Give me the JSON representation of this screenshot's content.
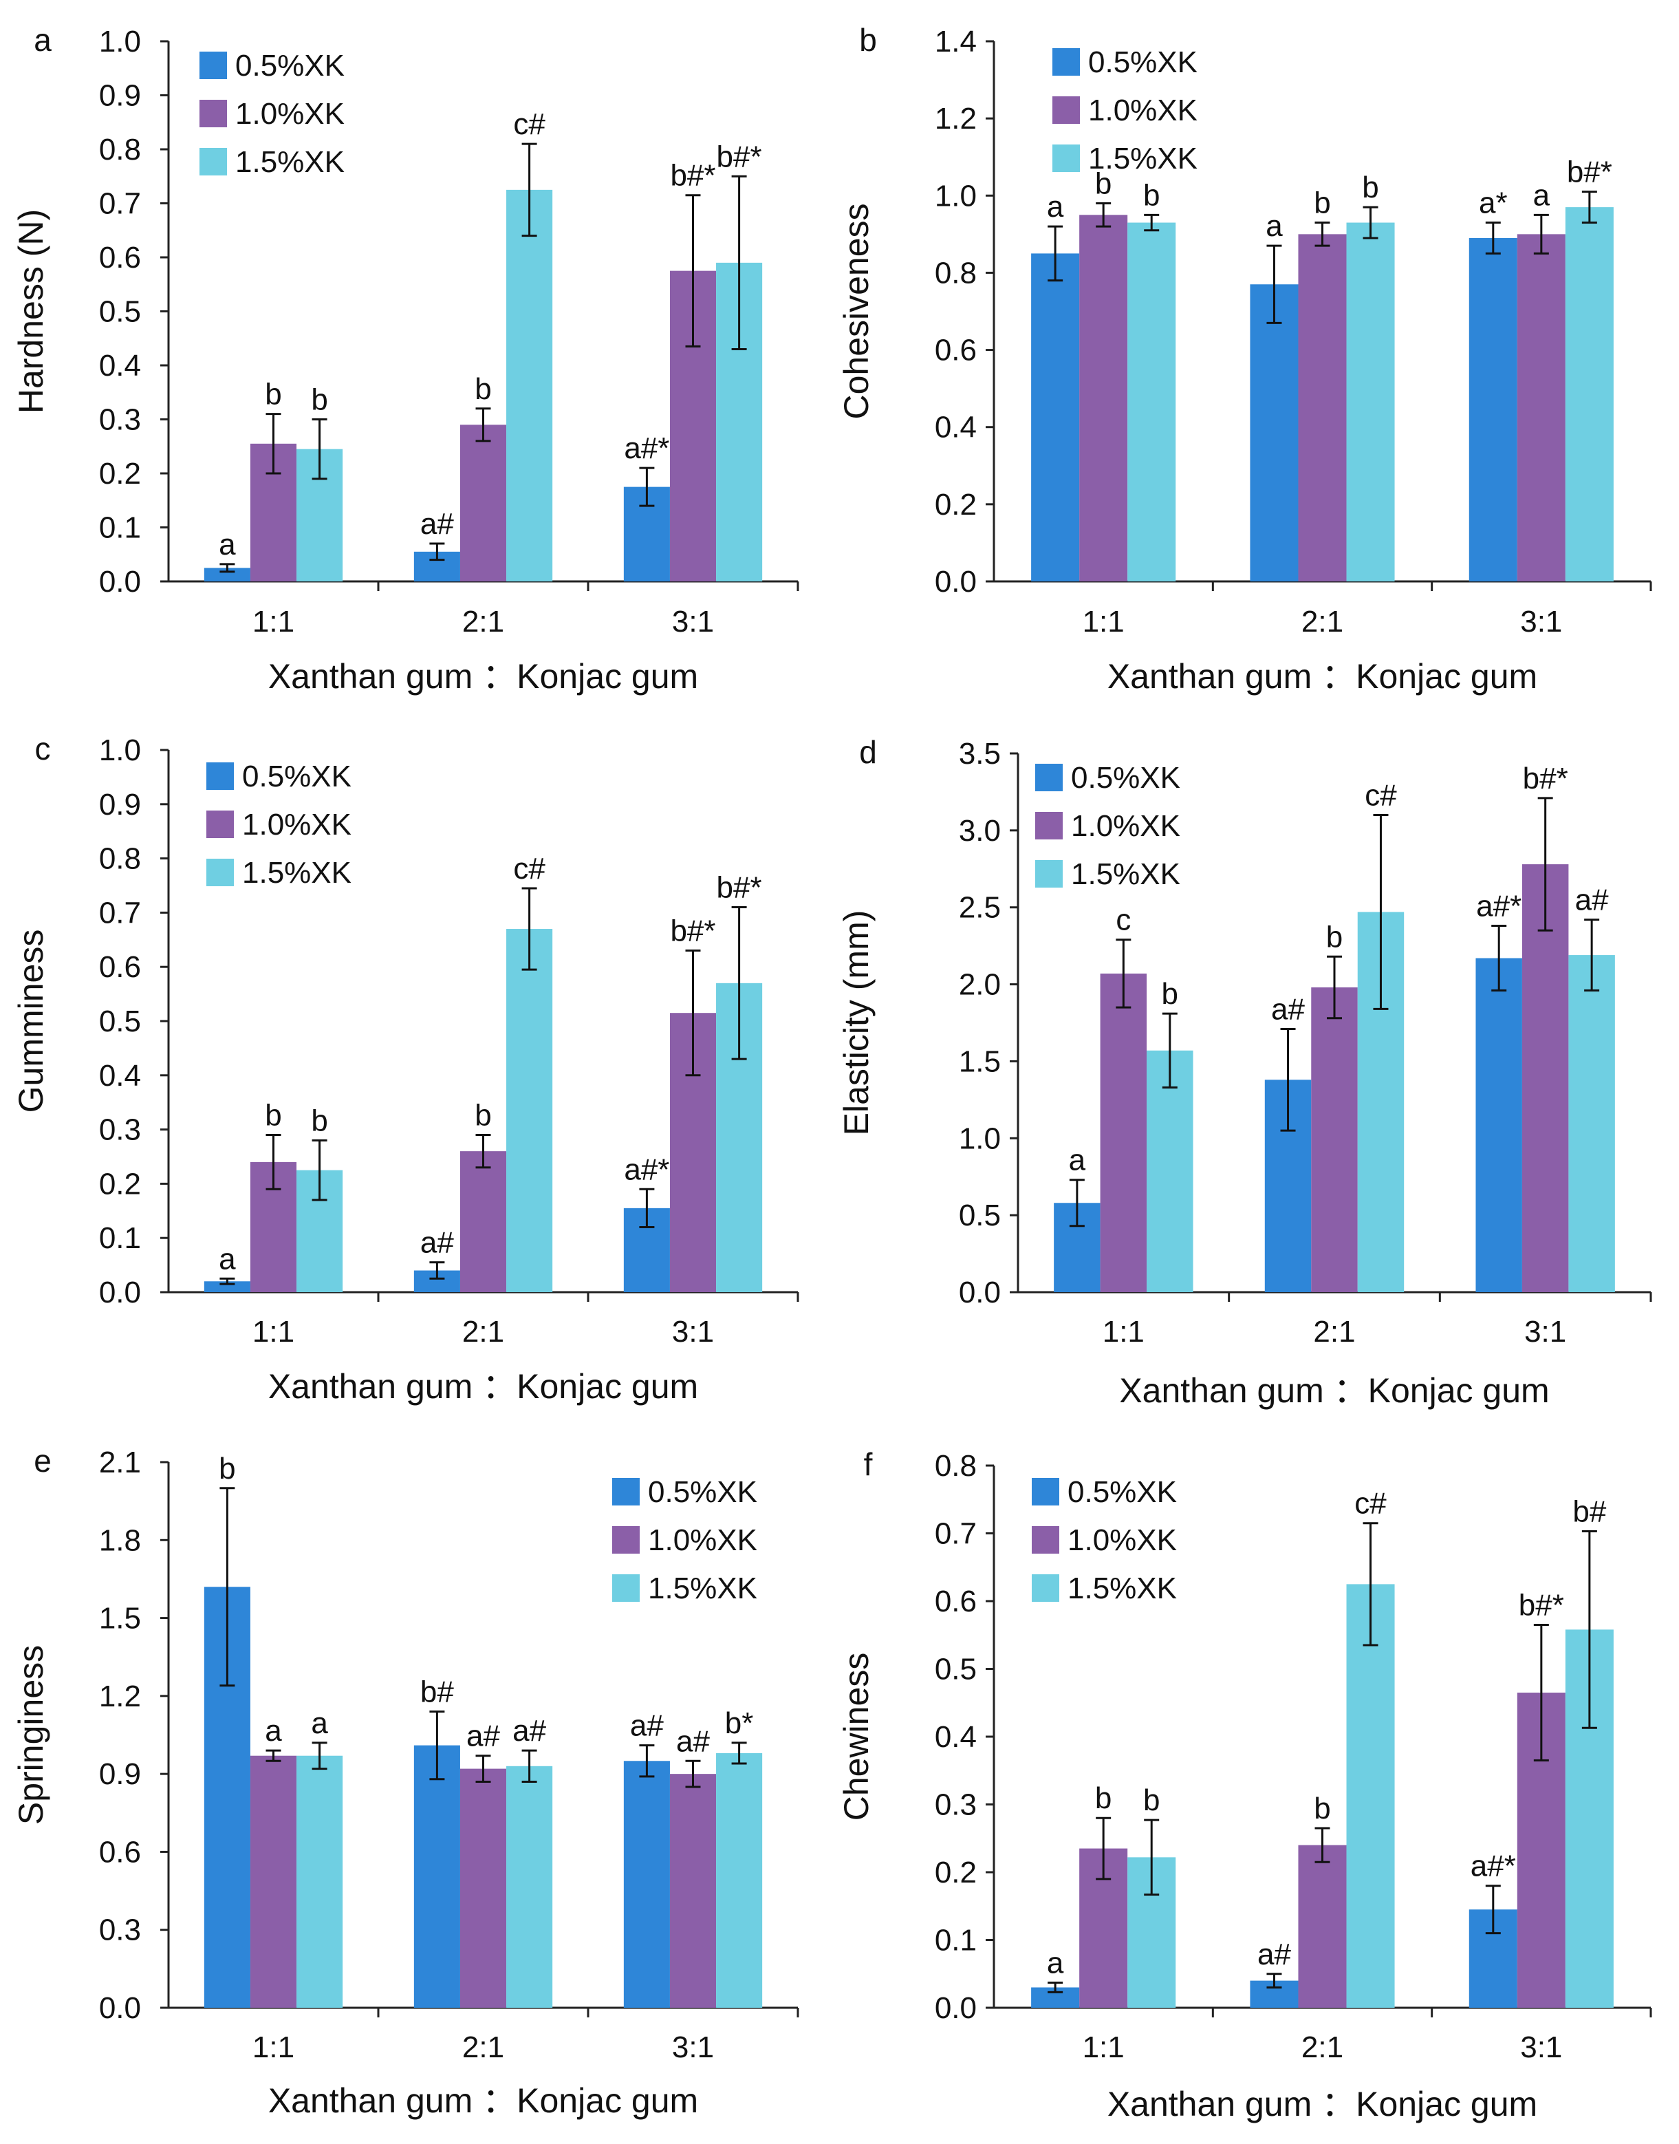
{
  "colors": {
    "s05": "#2e86d8",
    "s10": "#8b5fa8",
    "s15": "#6fcfe2",
    "axis": "#222222",
    "error": "#111111"
  },
  "chart_data": [
    {
      "type": "bar",
      "panel": "a",
      "categories": [
        "1:1",
        "2:1",
        "3:1"
      ],
      "xlabel": "Xanthan gum ：Konjac gum",
      "ylabel": "Hardness (N)",
      "ylim": [
        0,
        1.0
      ],
      "ticks": [
        "0.0",
        "0.1",
        "0.2",
        "0.3",
        "0.4",
        "0.5",
        "0.6",
        "0.7",
        "0.8",
        "0.9",
        "1.0"
      ],
      "legend_position": "top-left",
      "series": [
        {
          "name": "0.5%XK",
          "values": [
            0.025,
            0.055,
            0.175
          ],
          "errors": [
            0.007,
            0.015,
            0.035
          ],
          "labels": [
            "a",
            "a#",
            "a#*"
          ]
        },
        {
          "name": "1.0%XK",
          "values": [
            0.255,
            0.29,
            0.575
          ],
          "errors": [
            0.055,
            0.03,
            0.14
          ],
          "labels": [
            "b",
            "b",
            "b#*"
          ]
        },
        {
          "name": "1.5%XK",
          "values": [
            0.245,
            0.725,
            0.59
          ],
          "errors": [
            0.055,
            0.085,
            0.16
          ],
          "labels": [
            "b",
            "c#",
            "b#*"
          ]
        }
      ]
    },
    {
      "type": "bar",
      "panel": "b",
      "categories": [
        "1:1",
        "2:1",
        "3:1"
      ],
      "xlabel": "Xanthan gum ：Konjac gum",
      "ylabel": "Cohesiveness",
      "ylim": [
        0,
        1.4
      ],
      "ticks": [
        "0.0",
        "0.2",
        "0.4",
        "0.6",
        "0.8",
        "1.0",
        "1.2",
        "1.4"
      ],
      "legend_position": "top-left",
      "series": [
        {
          "name": "0.5%XK",
          "values": [
            0.85,
            0.77,
            0.89
          ],
          "errors": [
            0.07,
            0.1,
            0.04
          ],
          "labels": [
            "a",
            "a",
            "a*"
          ]
        },
        {
          "name": "1.0%XK",
          "values": [
            0.95,
            0.9,
            0.9
          ],
          "errors": [
            0.03,
            0.03,
            0.05
          ],
          "labels": [
            "b",
            "b",
            "a"
          ]
        },
        {
          "name": "1.5%XK",
          "values": [
            0.93,
            0.93,
            0.97
          ],
          "errors": [
            0.02,
            0.04,
            0.04
          ],
          "labels": [
            "b",
            "b",
            "b#*"
          ]
        }
      ]
    },
    {
      "type": "bar",
      "panel": "c",
      "categories": [
        "1:1",
        "2:1",
        "3:1"
      ],
      "xlabel": "Xanthan gum ：Konjac gum",
      "ylabel": "Gumminess",
      "ylim": [
        0,
        1.0
      ],
      "ticks": [
        "0.0",
        "0.1",
        "0.2",
        "0.3",
        "0.4",
        "0.5",
        "0.6",
        "0.7",
        "0.8",
        "0.9",
        "1.0"
      ],
      "legend_position": "top-left",
      "series": [
        {
          "name": "0.5%XK",
          "values": [
            0.02,
            0.04,
            0.155
          ],
          "errors": [
            0.005,
            0.015,
            0.035
          ],
          "labels": [
            "a",
            "a#",
            "a#*"
          ]
        },
        {
          "name": "1.0%XK",
          "values": [
            0.24,
            0.26,
            0.515
          ],
          "errors": [
            0.05,
            0.03,
            0.115
          ],
          "labels": [
            "b",
            "b",
            "b#*"
          ]
        },
        {
          "name": "1.5%XK",
          "values": [
            0.225,
            0.67,
            0.57
          ],
          "errors": [
            0.055,
            0.075,
            0.14
          ],
          "labels": [
            "b",
            "c#",
            "b#*"
          ]
        }
      ]
    },
    {
      "type": "bar",
      "panel": "d",
      "categories": [
        "1:1",
        "2:1",
        "3:1"
      ],
      "xlabel": "Xanthan gum ：Konjac gum",
      "ylabel": "Elasticity (mm)",
      "ylim": [
        0,
        3.5
      ],
      "ticks": [
        "0.0",
        "0.5",
        "1.0",
        "1.5",
        "2.0",
        "2.5",
        "3.0",
        "3.5"
      ],
      "legend_position": "top-left",
      "series": [
        {
          "name": "0.5%XK",
          "values": [
            0.58,
            1.38,
            2.17
          ],
          "errors": [
            0.15,
            0.33,
            0.21
          ],
          "labels": [
            "a",
            "a#",
            "a#*"
          ]
        },
        {
          "name": "1.0%XK",
          "values": [
            2.07,
            1.98,
            2.78
          ],
          "errors": [
            0.22,
            0.2,
            0.43
          ],
          "labels": [
            "c",
            "b",
            "b#*"
          ]
        },
        {
          "name": "1.5%XK",
          "values": [
            1.57,
            2.47,
            2.19
          ],
          "errors": [
            0.24,
            0.63,
            0.23
          ],
          "labels": [
            "b",
            "c#",
            "a#"
          ]
        }
      ]
    },
    {
      "type": "bar",
      "panel": "e",
      "categories": [
        "1:1",
        "2:1",
        "3:1"
      ],
      "xlabel": "Xanthan gum ：Konjac gum",
      "ylabel": "Springiness",
      "ylim": [
        0,
        2.1
      ],
      "ticks": [
        "0.0",
        "0.3",
        "0.6",
        "0.9",
        "1.2",
        "1.5",
        "1.8",
        "2.1"
      ],
      "legend_position": "top-right",
      "series": [
        {
          "name": "0.5%XK",
          "values": [
            1.62,
            1.01,
            0.95
          ],
          "errors": [
            0.38,
            0.13,
            0.06
          ],
          "labels": [
            "b",
            "b#",
            "a#"
          ]
        },
        {
          "name": "1.0%XK",
          "values": [
            0.97,
            0.92,
            0.9
          ],
          "errors": [
            0.02,
            0.05,
            0.05
          ],
          "labels": [
            "a",
            "a#",
            "a#"
          ]
        },
        {
          "name": "1.5%XK",
          "values": [
            0.97,
            0.93,
            0.98
          ],
          "errors": [
            0.05,
            0.06,
            0.04
          ],
          "labels": [
            "a",
            "a#",
            "b*"
          ]
        }
      ]
    },
    {
      "type": "bar",
      "panel": "f",
      "categories": [
        "1:1",
        "2:1",
        "3:1"
      ],
      "xlabel": "Xanthan gum ：Konjac gum",
      "ylabel": "Chewiness",
      "ylim": [
        0,
        0.8
      ],
      "ticks": [
        "0.0",
        "0.1",
        "0.2",
        "0.3",
        "0.4",
        "0.5",
        "0.6",
        "0.7",
        "0.8"
      ],
      "legend_position": "top-left",
      "series": [
        {
          "name": "0.5%XK",
          "values": [
            0.03,
            0.04,
            0.145
          ],
          "errors": [
            0.007,
            0.01,
            0.035
          ],
          "labels": [
            "a",
            "a#",
            "a#*"
          ]
        },
        {
          "name": "1.0%XK",
          "values": [
            0.235,
            0.24,
            0.465
          ],
          "errors": [
            0.045,
            0.025,
            0.1
          ],
          "labels": [
            "b",
            "b",
            "b#*"
          ]
        },
        {
          "name": "1.5%XK",
          "values": [
            0.222,
            0.625,
            0.558
          ],
          "errors": [
            0.055,
            0.09,
            0.145
          ],
          "labels": [
            "b",
            "c#",
            "b#"
          ]
        }
      ]
    }
  ]
}
